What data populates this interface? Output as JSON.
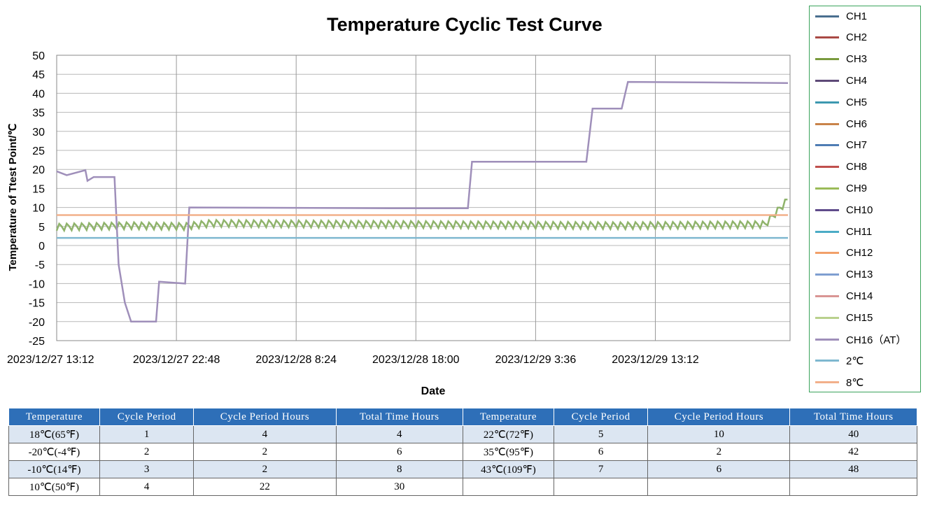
{
  "chart_data": {
    "type": "line",
    "title": "Temperature Cyclic Test Curve",
    "xlabel": "Date",
    "ylabel": "Temperature of Ttest Point/℃",
    "ylim": [
      -25,
      50
    ],
    "yticks": [
      50,
      45,
      40,
      35,
      30,
      25,
      20,
      15,
      10,
      5,
      0,
      -5,
      -10,
      -15,
      -20,
      -25
    ],
    "xlim": [
      "2023/12/27 13:12",
      "2023/12/30 0:00"
    ],
    "xticks": [
      "2023/12/27 13:12",
      "2023/12/27 22:48",
      "2023/12/28 8:24",
      "2023/12/28 18:00",
      "2023/12/29 3:36",
      "2023/12/29 13:12"
    ],
    "grid": true,
    "legend_position": "right",
    "series": [
      {
        "name": "CH1",
        "color": "#4a6f8f"
      },
      {
        "name": "CH2",
        "color": "#a94a45"
      },
      {
        "name": "CH3",
        "color": "#7a9a3e"
      },
      {
        "name": "CH4",
        "color": "#5e4a78"
      },
      {
        "name": "CH5",
        "color": "#3d98b0"
      },
      {
        "name": "CH6",
        "color": "#c9834a"
      },
      {
        "name": "CH7",
        "color": "#4f7db4"
      },
      {
        "name": "CH8",
        "color": "#c0504d"
      },
      {
        "name": "CH9",
        "color": "#9bbb59"
      },
      {
        "name": "CH10",
        "color": "#5f4b8b"
      },
      {
        "name": "CH11",
        "color": "#4bacc6"
      },
      {
        "name": "CH12",
        "color": "#f2a069"
      },
      {
        "name": "CH13",
        "color": "#7f9fd1"
      },
      {
        "name": "CH14",
        "color": "#d99594"
      },
      {
        "name": "CH15",
        "color": "#b9d18d"
      },
      {
        "name": "CH16（AT）",
        "color": "#9f8fba",
        "points": [
          [
            "2023/12/27 13:12",
            19.5
          ],
          [
            "2023/12/27 14:00",
            18.5
          ],
          [
            "2023/12/27 15:30",
            19.8
          ],
          [
            "2023/12/27 15:40",
            17.0
          ],
          [
            "2023/12/27 16:10",
            18.0
          ],
          [
            "2023/12/27 17:50",
            18.0
          ],
          [
            "2023/12/27 18:10",
            -5.0
          ],
          [
            "2023/12/27 18:40",
            -15.0
          ],
          [
            "2023/12/27 19:10",
            -20.0
          ],
          [
            "2023/12/27 21:10",
            -20.0
          ],
          [
            "2023/12/27 21:25",
            -9.5
          ],
          [
            "2023/12/27 23:30",
            -10.0
          ],
          [
            "2023/12/27 23:50",
            10.0
          ],
          [
            "2023/12/28 16:00",
            9.8
          ],
          [
            "2023/12/28 22:10",
            9.8
          ],
          [
            "2023/12/28 22:30",
            22.0
          ],
          [
            "2023/12/29 7:40",
            22.0
          ],
          [
            "2023/12/29 8:10",
            36.0
          ],
          [
            "2023/12/29 10:30",
            36.0
          ],
          [
            "2023/12/29 11:00",
            43.0
          ],
          [
            "2023/12/29 23:50",
            42.7
          ]
        ]
      },
      {
        "name": "2℃",
        "color": "#7fb8d0",
        "points": [
          [
            "2023/12/27 13:12",
            2
          ],
          [
            "2023/12/29 23:50",
            2
          ]
        ]
      },
      {
        "name": "8℃",
        "color": "#f2b08a",
        "points": [
          [
            "2023/12/27 13:12",
            8
          ],
          [
            "2023/12/29 23:50",
            8
          ]
        ]
      }
    ],
    "ch_band": {
      "color": "#8fb36b",
      "points": [
        [
          "2023/12/27 13:12",
          4.8
        ],
        [
          "2023/12/27 19:00",
          5.2
        ],
        [
          "2023/12/27 23:30",
          5.0
        ],
        [
          "2023/12/28 1:30",
          5.8
        ],
        [
          "2023/12/29 11:00",
          5.2
        ],
        [
          "2023/12/29 22:00",
          5.5
        ],
        [
          "2023/12/29 23:50",
          12.0
        ]
      ]
    }
  },
  "table": {
    "headers": [
      "Temperature",
      "Cycle Period",
      "Cycle Period Hours",
      "Total Time Hours",
      "Temperature",
      "Cycle Period",
      "Cycle Period Hours",
      "Total Time Hours"
    ],
    "rows": [
      [
        "18℃(65℉)",
        "1",
        "4",
        "4",
        "22℃(72℉)",
        "5",
        "10",
        "40"
      ],
      [
        "-20℃(-4℉)",
        "2",
        "2",
        "6",
        "35℃(95℉)",
        "6",
        "2",
        "42"
      ],
      [
        "-10℃(14℉)",
        "3",
        "2",
        "8",
        "43℃(109℉)",
        "7",
        "6",
        "48"
      ],
      [
        "10℃(50℉)",
        "4",
        "22",
        "30",
        "",
        "",
        "",
        ""
      ]
    ]
  }
}
